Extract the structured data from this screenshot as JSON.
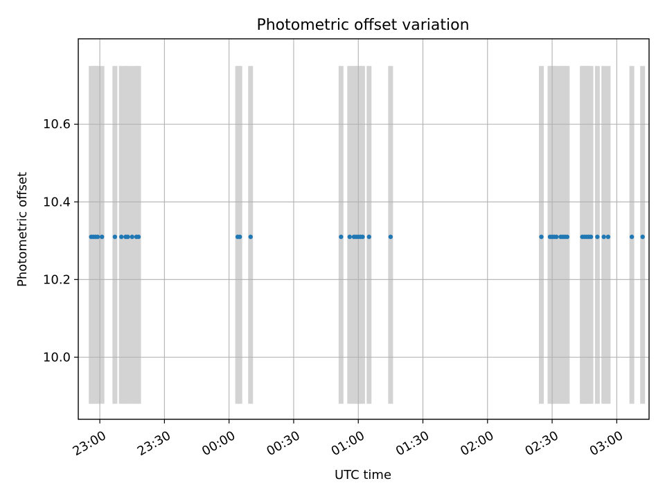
{
  "chart_data": {
    "type": "scatter",
    "title": "Photometric offset variation",
    "xlabel": "UTC time",
    "ylabel": "Photometric offset",
    "x_axis": {
      "kind": "time",
      "range": [
        "22:50",
        "03:15"
      ],
      "ticks": [
        "23:00",
        "23:30",
        "00:00",
        "00:30",
        "01:00",
        "01:30",
        "02:00",
        "02:30",
        "03:00"
      ]
    },
    "y_axis": {
      "range": [
        9.84,
        10.82
      ],
      "ticks": [
        10.0,
        10.2,
        10.4,
        10.6
      ],
      "tick_labels": [
        "10.0",
        "10.2",
        "10.4",
        "10.6"
      ]
    },
    "grid": true,
    "marker_color": "#1f77b4",
    "band_color": "#d3d3d3",
    "band_y_range": [
      9.88,
      10.75
    ],
    "series": [
      {
        "x": [
          "22:56",
          "22:57",
          "22:58",
          "22:59",
          "23:01",
          "23:07",
          "23:10",
          "23:12",
          "23:13",
          "23:15",
          "23:17",
          "23:18",
          "00:04",
          "00:05",
          "00:10",
          "00:52",
          "00:56",
          "00:58",
          "00:59",
          "01:00",
          "01:01",
          "01:02",
          "01:05",
          "01:15",
          "02:25",
          "02:29",
          "02:30",
          "02:31",
          "02:32",
          "02:34",
          "02:35",
          "02:36",
          "02:37",
          "02:44",
          "02:45",
          "02:46",
          "02:47",
          "02:48",
          "02:51",
          "02:54",
          "02:56",
          "03:07",
          "03:12"
        ],
        "y": [
          10.31,
          10.31,
          10.31,
          10.31,
          10.31,
          10.31,
          10.31,
          10.31,
          10.31,
          10.31,
          10.31,
          10.31,
          10.31,
          10.31,
          10.31,
          10.31,
          10.31,
          10.31,
          10.31,
          10.31,
          10.31,
          10.31,
          10.31,
          10.31,
          10.31,
          10.31,
          10.31,
          10.31,
          10.31,
          10.31,
          10.31,
          10.31,
          10.31,
          10.31,
          10.31,
          10.31,
          10.31,
          10.31,
          10.31,
          10.31,
          10.31,
          10.31,
          10.31
        ]
      }
    ]
  }
}
